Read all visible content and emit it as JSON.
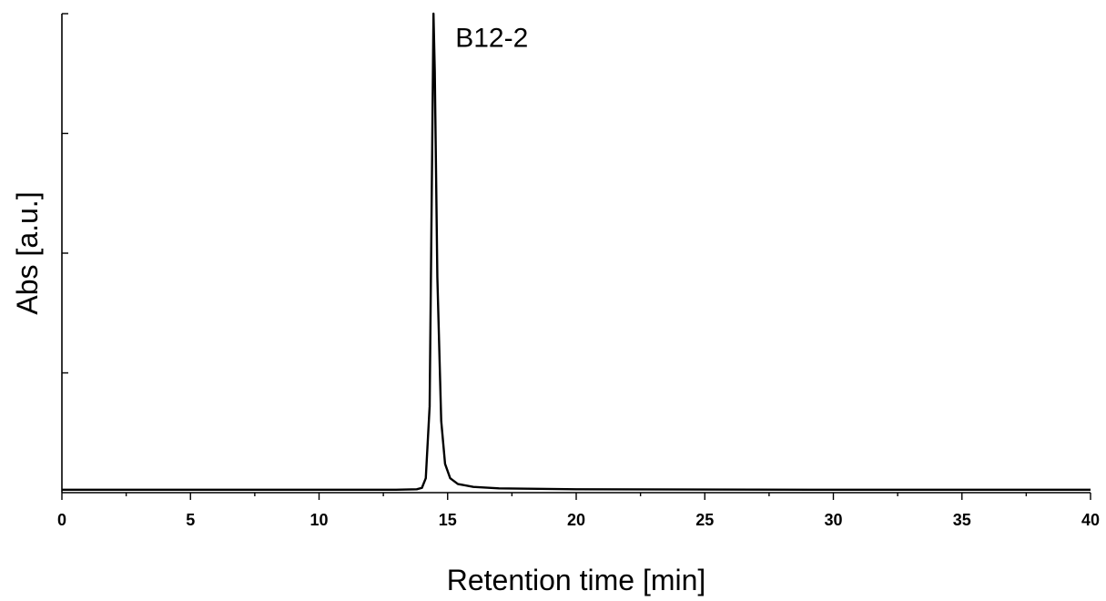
{
  "chart_data": {
    "type": "line",
    "title": "",
    "xlabel": "Retention time [min]",
    "ylabel": "Abs [a.u.]",
    "xlim": [
      0,
      40
    ],
    "ylim": [
      0,
      1
    ],
    "x_ticks": [
      "0",
      "5",
      "10",
      "15",
      "20",
      "25",
      "30",
      "35",
      "40"
    ],
    "y_ticks_labeled": false,
    "grid": false,
    "annotations": [
      {
        "text": "B12-2",
        "x": 15.3,
        "y": 0.95
      }
    ],
    "series": [
      {
        "peak": {
          "x": 14.45,
          "y": 1.0
        },
        "baseline": 0.006,
        "x": [
          0,
          5,
          10,
          13,
          13.8,
          14.0,
          14.15,
          14.3,
          14.4,
          14.45,
          14.5,
          14.6,
          14.75,
          14.9,
          15.1,
          15.4,
          16.0,
          17.0,
          20.0,
          30.0,
          40.0
        ],
        "y": [
          0.006,
          0.006,
          0.006,
          0.006,
          0.007,
          0.01,
          0.03,
          0.18,
          0.72,
          1.0,
          0.88,
          0.45,
          0.15,
          0.06,
          0.03,
          0.018,
          0.012,
          0.009,
          0.007,
          0.006,
          0.006
        ]
      }
    ]
  }
}
